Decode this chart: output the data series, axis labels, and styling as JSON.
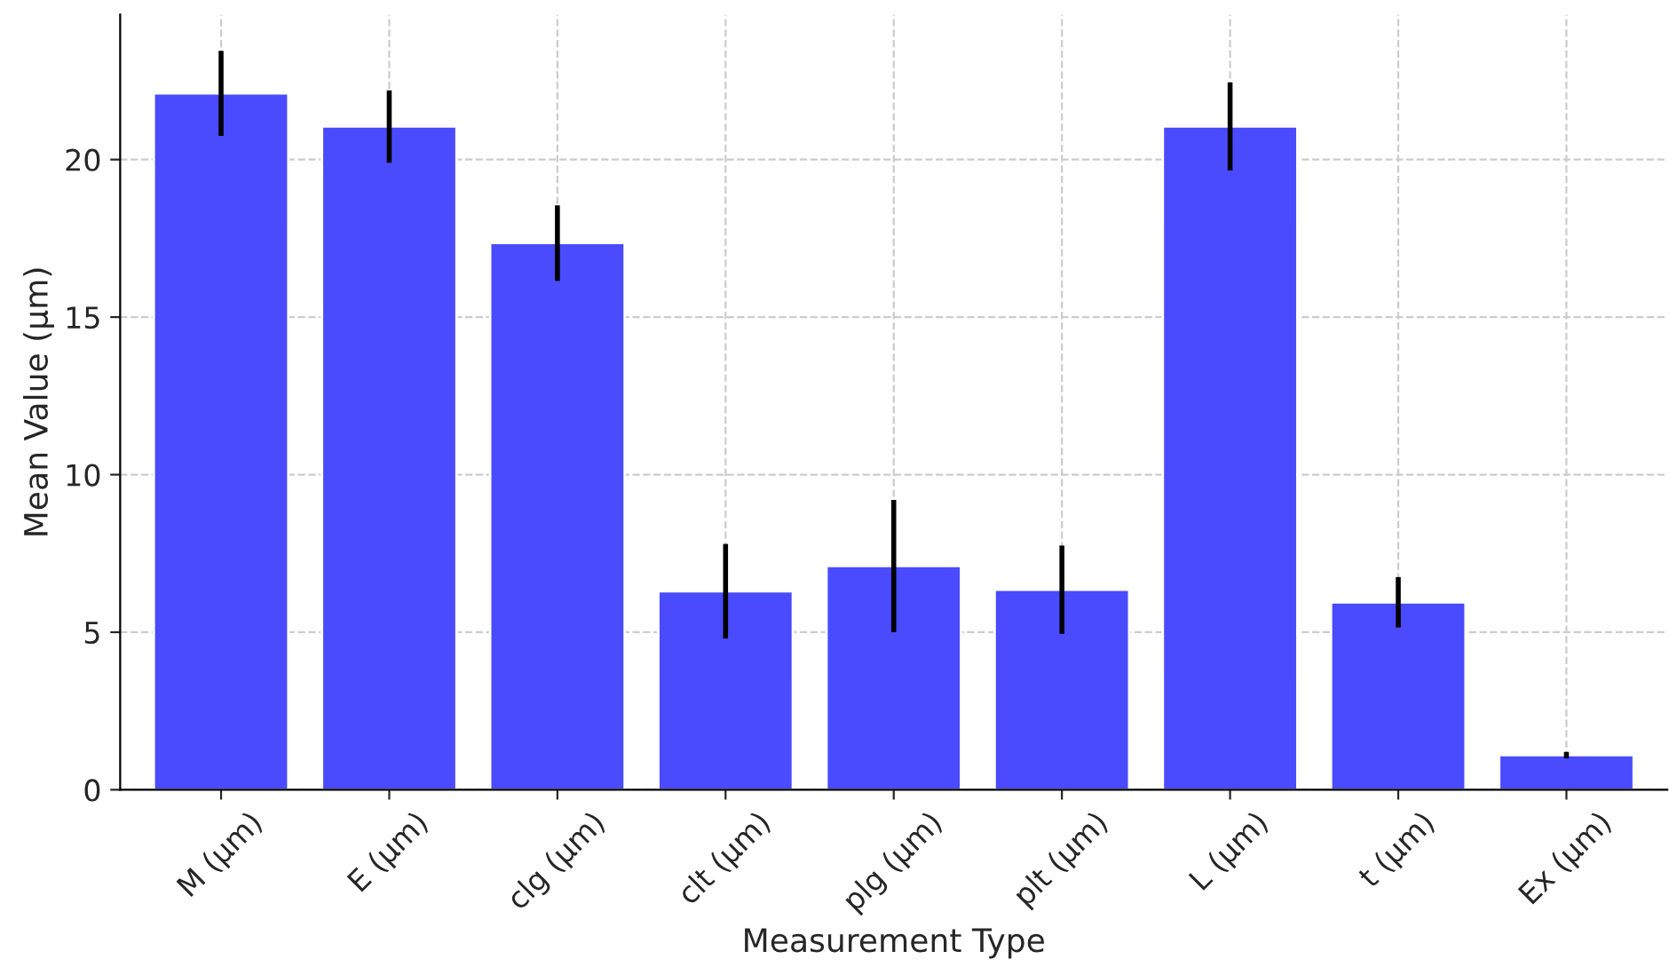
{
  "chart_data": {
    "type": "bar",
    "xlabel": "Measurement Type",
    "ylabel": "Mean Value (µm)",
    "categories": [
      "M (µm)",
      "E (µm)",
      "clg (µm)",
      "clt (µm)",
      "plg (µm)",
      "plt (µm)",
      "L (µm)",
      "t (µm)",
      "Ex (µm)"
    ],
    "values": [
      22.1,
      21.05,
      17.35,
      6.3,
      7.1,
      6.35,
      21.05,
      5.95,
      1.1
    ],
    "errors": [
      1.35,
      1.15,
      1.2,
      1.5,
      2.1,
      1.4,
      1.4,
      0.8,
      0.1
    ],
    "color": "#4a4aff",
    "ylim": [
      0,
      24.6
    ],
    "yticks": [
      0,
      5,
      10,
      15,
      20
    ],
    "grid": true
  }
}
